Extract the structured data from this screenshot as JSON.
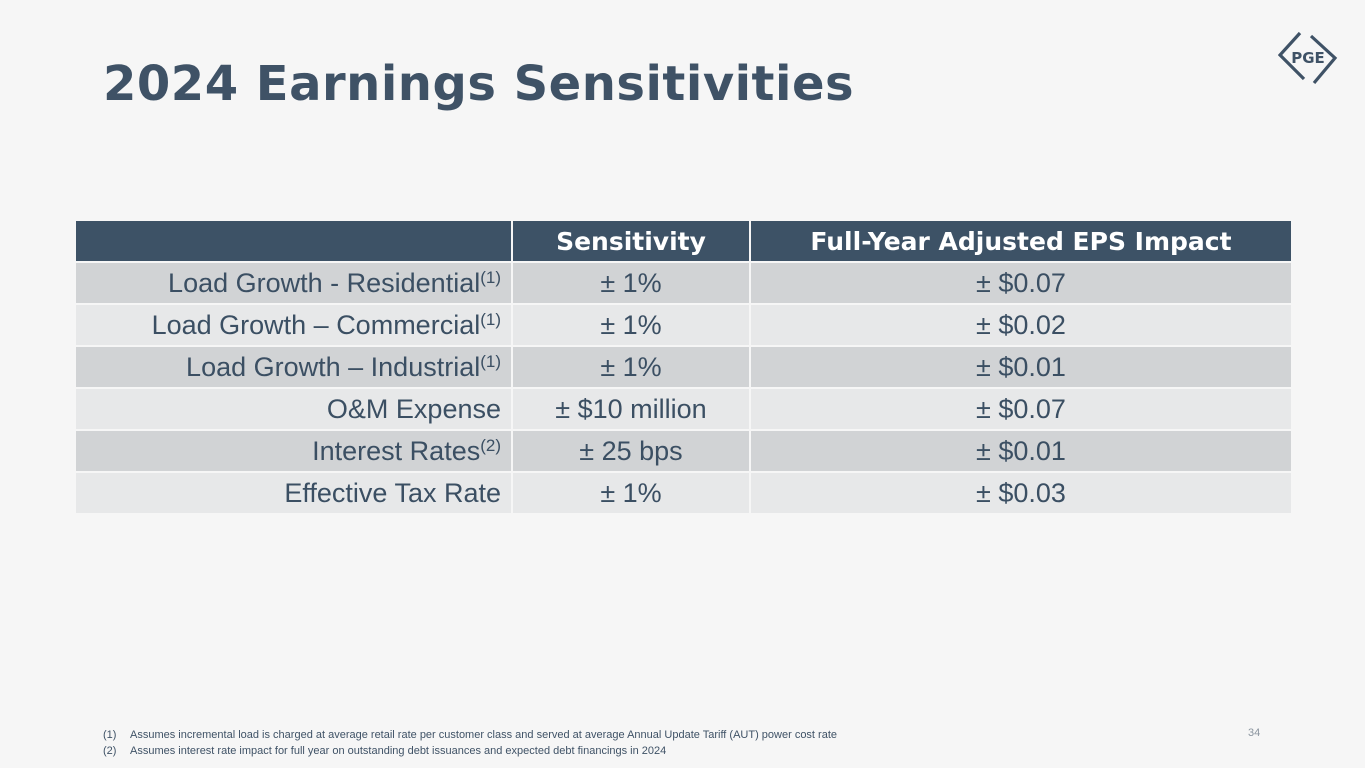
{
  "slide": {
    "title": "2024 Earnings Sensitivities",
    "logo_text": "PGE",
    "page_number": "34"
  },
  "table": {
    "headers": [
      "",
      "Sensitivity",
      "Full-Year Adjusted EPS Impact"
    ],
    "rows": [
      {
        "label": "Load Growth - Residential",
        "note": "(1)",
        "sensitivity": "± 1%",
        "eps": "± $0.07"
      },
      {
        "label": "Load Growth – Commercial",
        "note": "(1)",
        "sensitivity": "± 1%",
        "eps": "± $0.02"
      },
      {
        "label": "Load Growth – Industrial",
        "note": "(1)",
        "sensitivity": "± 1%",
        "eps": "± $0.01"
      },
      {
        "label": "O&M Expense",
        "note": "",
        "sensitivity": "± $10 million",
        "eps": "± $0.07"
      },
      {
        "label": "Interest Rates",
        "note": "(2)",
        "sensitivity": "± 25 bps",
        "eps": "± $0.01"
      },
      {
        "label": "Effective Tax Rate",
        "note": "",
        "sensitivity": "± 1%",
        "eps": "± $0.03"
      }
    ]
  },
  "footnotes": [
    {
      "num": "(1)",
      "text": "Assumes incremental load is charged at average retail rate per customer class and served at average Annual Update Tariff (AUT) power cost rate"
    },
    {
      "num": "(2)",
      "text": "Assumes interest rate impact for full year on outstanding debt issuances and expected debt financings in 2024"
    }
  ],
  "colors": {
    "title": "#3f5266",
    "header_bg": "#3d5266",
    "row_dark": "#d1d3d5",
    "row_light": "#e7e8e9",
    "background": "#f6f6f6"
  }
}
